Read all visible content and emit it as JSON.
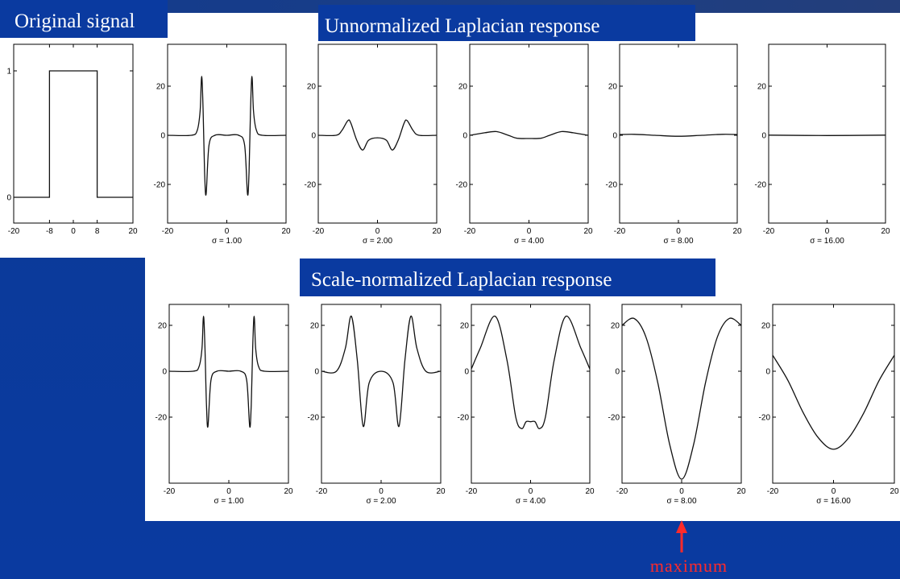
{
  "headers": {
    "original": "Original signal",
    "unnormalized": "Unnormalized Laplacian response",
    "normalized": "Scale-normalized Laplacian response"
  },
  "annotation": {
    "text": "maximum",
    "color": "#ff2a2a"
  },
  "colors": {
    "background": "#0b3a9a",
    "title_box": "#0a3aa0",
    "arrow": "#ff2a2a"
  },
  "chart_data": [
    {
      "type": "line",
      "panel": "original",
      "title": "",
      "xticks": [
        -20,
        -8,
        0,
        8,
        20
      ],
      "yticks": [
        0,
        1
      ],
      "xlim": [
        -20,
        20
      ],
      "ylim": [
        -0.2,
        1.2
      ],
      "x": [
        -20,
        -8,
        -8,
        8,
        8,
        20
      ],
      "y": [
        0,
        0,
        1,
        1,
        0,
        0
      ]
    },
    {
      "type": "line",
      "row": "unnormalized",
      "xlabel": "σ = 1.00",
      "sigma": 1,
      "xticks": [
        -20,
        0,
        20
      ],
      "yticks": [
        -20,
        0,
        20
      ],
      "xlim": [
        -20,
        20
      ],
      "ylim": [
        -30,
        30
      ],
      "x": [
        -20,
        -12,
        -10,
        -9,
        -8.5,
        -8,
        -7.5,
        -7,
        -6,
        -4,
        0,
        4,
        6,
        7,
        7.5,
        8,
        8.5,
        9,
        10,
        12,
        20
      ],
      "y": [
        0,
        0,
        2,
        10,
        24,
        10,
        -15,
        -24,
        -4,
        0,
        0,
        0,
        -4,
        -24,
        -15,
        10,
        24,
        10,
        2,
        0,
        0
      ]
    },
    {
      "type": "line",
      "row": "unnormalized",
      "xlabel": "σ = 2.00",
      "sigma": 2,
      "xticks": [
        -20,
        0,
        20
      ],
      "yticks": [
        -20,
        0,
        20
      ],
      "xlim": [
        -20,
        20
      ],
      "ylim": [
        -30,
        30
      ],
      "x": [
        -20,
        -14,
        -12,
        -10,
        -9,
        -7,
        -5,
        -3,
        0,
        3,
        5,
        7,
        9,
        10,
        12,
        14,
        20
      ],
      "y": [
        0,
        0,
        2,
        6,
        5,
        -2,
        -6,
        -2,
        -1,
        -2,
        -6,
        -2,
        5,
        6,
        2,
        0,
        0
      ]
    },
    {
      "type": "line",
      "row": "unnormalized",
      "xlabel": "σ = 4.00",
      "sigma": 4,
      "xticks": [
        -20,
        0,
        20
      ],
      "yticks": [
        -20,
        0,
        20
      ],
      "xlim": [
        -20,
        20
      ],
      "ylim": [
        -30,
        30
      ],
      "x": [
        -20,
        -15,
        -11,
        -7,
        -4,
        0,
        4,
        7,
        11,
        15,
        20
      ],
      "y": [
        0,
        1,
        1.5,
        0,
        -1.2,
        -1.3,
        -1.2,
        0,
        1.5,
        1,
        0
      ]
    },
    {
      "type": "line",
      "row": "unnormalized",
      "xlabel": "σ = 8.00",
      "sigma": 8,
      "xticks": [
        -20,
        0,
        20
      ],
      "yticks": [
        -20,
        0,
        20
      ],
      "xlim": [
        -20,
        20
      ],
      "ylim": [
        -30,
        30
      ],
      "x": [
        -20,
        -15,
        -8,
        0,
        8,
        15,
        20
      ],
      "y": [
        0.3,
        0.4,
        0,
        -0.4,
        0,
        0.4,
        0.3
      ]
    },
    {
      "type": "line",
      "row": "unnormalized",
      "xlabel": "σ = 16.00",
      "sigma": 16,
      "xticks": [
        -20,
        0,
        20
      ],
      "yticks": [
        -20,
        0,
        20
      ],
      "xlim": [
        -20,
        20
      ],
      "ylim": [
        -30,
        30
      ],
      "x": [
        -20,
        0,
        20
      ],
      "y": [
        0.05,
        -0.1,
        0.05
      ]
    },
    {
      "type": "line",
      "row": "normalized",
      "xlabel": "σ = 1.00",
      "sigma": 1,
      "xticks": [
        -20,
        0,
        20
      ],
      "yticks": [
        -20,
        0,
        20
      ],
      "xlim": [
        -20,
        20
      ],
      "ylim": [
        -50,
        30
      ],
      "x": [
        -20,
        -12,
        -10,
        -9,
        -8.5,
        -8,
        -7.5,
        -7,
        -6,
        -4,
        0,
        4,
        6,
        7,
        7.5,
        8,
        8.5,
        9,
        10,
        12,
        20
      ],
      "y": [
        0,
        0,
        2,
        10,
        24,
        10,
        -15,
        -24,
        -4,
        0,
        0,
        0,
        -4,
        -24,
        -15,
        10,
        24,
        10,
        2,
        0,
        0
      ]
    },
    {
      "type": "line",
      "row": "normalized",
      "xlabel": "σ = 2.00",
      "sigma": 2,
      "xticks": [
        -20,
        0,
        20
      ],
      "yticks": [
        -20,
        0,
        20
      ],
      "xlim": [
        -20,
        20
      ],
      "ylim": [
        -50,
        30
      ],
      "x": [
        -20,
        -15,
        -12,
        -10,
        -8,
        -6,
        -4,
        0,
        4,
        6,
        8,
        10,
        12,
        15,
        20
      ],
      "y": [
        0,
        0,
        10,
        24,
        5,
        -24,
        -5,
        0,
        -5,
        -24,
        5,
        24,
        10,
        0,
        0
      ]
    },
    {
      "type": "line",
      "row": "normalized",
      "xlabel": "σ = 4.00",
      "sigma": 4,
      "xticks": [
        -20,
        0,
        20
      ],
      "yticks": [
        -20,
        0,
        20
      ],
      "xlim": [
        -20,
        20
      ],
      "ylim": [
        -50,
        30
      ],
      "x": [
        -20,
        -17,
        -12,
        -8,
        -5,
        -3,
        -1.5,
        0,
        1.5,
        3,
        5,
        8,
        12,
        17,
        20
      ],
      "y": [
        1,
        10,
        24,
        5,
        -20,
        -25,
        -22,
        -22,
        -22,
        -25,
        -20,
        5,
        24,
        10,
        1
      ]
    },
    {
      "type": "line",
      "row": "normalized",
      "xlabel": "σ = 8.00",
      "sigma": 8,
      "xticks": [
        -20,
        0,
        20
      ],
      "yticks": [
        -20,
        0,
        20
      ],
      "xlim": [
        -20,
        20
      ],
      "ylim": [
        -50,
        30
      ],
      "x": [
        -20,
        -16,
        -12,
        -8,
        -4,
        0,
        4,
        8,
        12,
        16,
        20
      ],
      "y": [
        20,
        23,
        15,
        -5,
        -32,
        -47,
        -32,
        -5,
        15,
        23,
        20
      ]
    },
    {
      "type": "line",
      "row": "normalized",
      "xlabel": "σ = 16.00",
      "sigma": 16,
      "xticks": [
        -20,
        0,
        20
      ],
      "yticks": [
        -20,
        0,
        20
      ],
      "xlim": [
        -20,
        20
      ],
      "ylim": [
        -50,
        30
      ],
      "x": [
        -20,
        -15,
        -10,
        -5,
        0,
        5,
        10,
        15,
        20
      ],
      "y": [
        7,
        -4,
        -18,
        -29,
        -34,
        -29,
        -18,
        -4,
        7
      ]
    }
  ]
}
